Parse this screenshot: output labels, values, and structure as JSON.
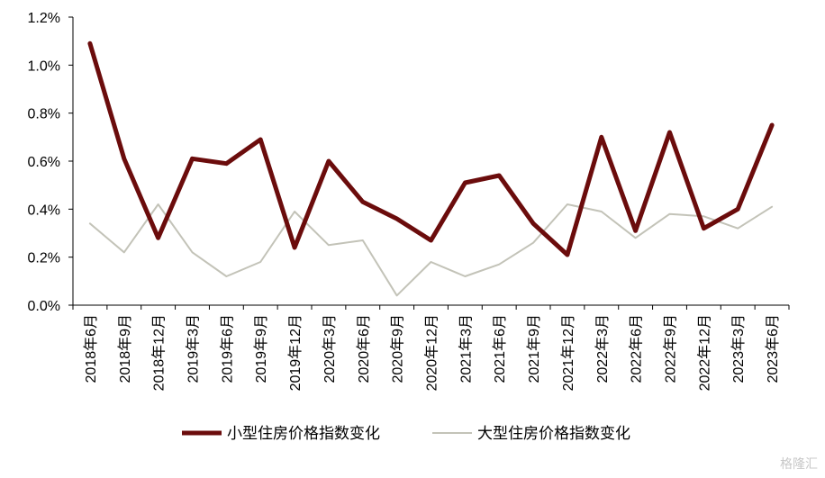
{
  "chart_data": {
    "type": "line",
    "categories": [
      "2018年6月",
      "2018年9月",
      "2018年12月",
      "2019年3月",
      "2019年6月",
      "2019年9月",
      "2019年12月",
      "2020年3月",
      "2020年6月",
      "2020年9月",
      "2020年12月",
      "2021年3月",
      "2021年6月",
      "2021年9月",
      "2021年12月",
      "2022年3月",
      "2022年6月",
      "2022年9月",
      "2022年12月",
      "2023年3月",
      "2023年6月"
    ],
    "series": [
      {
        "name": "小型住房价格指数变化",
        "color": "#6b0c0c",
        "values": [
          1.09,
          0.61,
          0.28,
          0.61,
          0.59,
          0.69,
          0.24,
          0.6,
          0.43,
          0.36,
          0.27,
          0.51,
          0.54,
          0.34,
          0.21,
          0.7,
          0.31,
          0.72,
          0.32,
          0.4,
          0.75
        ]
      },
      {
        "name": "大型住房价格指数变化",
        "color": "#c3c3b8",
        "values": [
          0.34,
          0.22,
          0.42,
          0.22,
          0.12,
          0.18,
          0.39,
          0.25,
          0.27,
          0.04,
          0.18,
          0.12,
          0.17,
          0.26,
          0.42,
          0.39,
          0.28,
          0.38,
          0.37,
          0.32,
          0.41
        ]
      }
    ],
    "yticks": [
      "0.0%",
      "0.2%",
      "0.4%",
      "0.6%",
      "0.8%",
      "1.0%",
      "1.2%"
    ],
    "ylim": [
      0,
      1.2
    ],
    "grid": false,
    "legend": "bottom"
  },
  "watermark": "格隆汇"
}
